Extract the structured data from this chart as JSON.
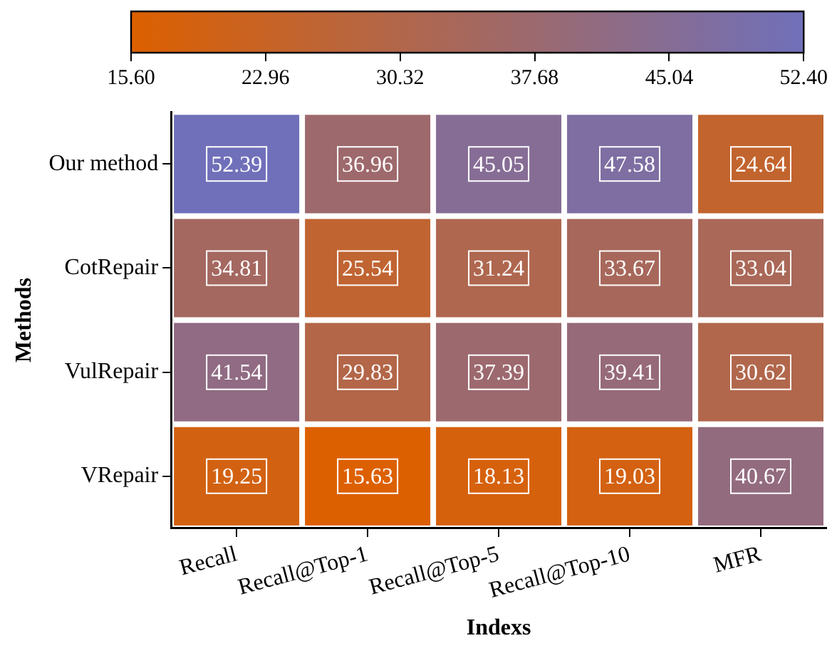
{
  "chart_data": {
    "type": "heatmap",
    "xlabel": "Indexs",
    "ylabel": "Methods",
    "categories": [
      "Recall",
      "Recall@Top-1",
      "Recall@Top-5",
      "Recall@Top-10",
      "MFR"
    ],
    "y_categories": [
      "Our method",
      "CotRepair",
      "VulRepair",
      "VRepair"
    ],
    "cells": [
      [
        52.39,
        36.96,
        45.05,
        47.58,
        24.64
      ],
      [
        34.81,
        25.54,
        31.24,
        33.67,
        33.04
      ],
      [
        41.54,
        29.83,
        37.39,
        39.41,
        30.62
      ],
      [
        19.25,
        15.63,
        18.13,
        19.03,
        40.67
      ]
    ],
    "clim": [
      15.6,
      52.4
    ],
    "cticks": [
      {
        "value": 15.6,
        "label": "15.60"
      },
      {
        "value": 22.96,
        "label": "22.96"
      },
      {
        "value": 30.32,
        "label": "30.32"
      },
      {
        "value": 37.68,
        "label": "37.68"
      },
      {
        "value": 45.04,
        "label": "45.04"
      },
      {
        "value": 52.4,
        "label": "52.40"
      }
    ],
    "data_labels": true,
    "grid": false,
    "legend": false
  }
}
